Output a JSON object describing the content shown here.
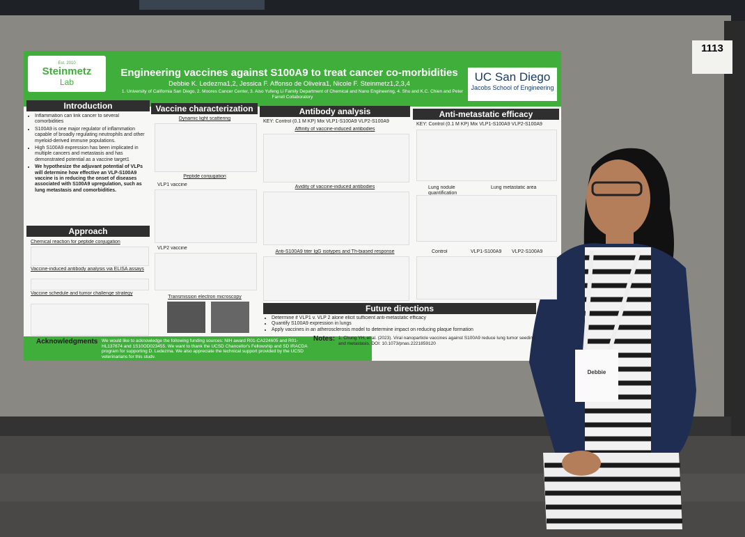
{
  "booth_number": "1113",
  "poster": {
    "logo": {
      "est": "Est. 2010",
      "name": "Steinmetz",
      "sub": "Lab"
    },
    "title": "Engineering vaccines against S100A9 to treat cancer co-morbidities",
    "authors": "Debbie K. Ledezma1,2, Jessica F. Affonso de Oliveira1, Nicole F. Steinmetz1,2,3,4",
    "affiliations": "1. University of California San Diego, 2. Moores Cancer Center, 3. Aiso Yufeng Li Family Department of Chemical and Nano Engineering, 4. Shu and K.C. Chien and Peter Farrell Collaboratory",
    "institution": {
      "name": "UC San Diego",
      "school": "Jacobs School of Engineering"
    },
    "introduction": {
      "heading": "Introduction",
      "bullets": [
        "Inflammation can link cancer to several comorbidities",
        "S100A9 is one major regulator of inflammation capable of broadly regulating neutrophils and other myeloid-derived immune populations.",
        "High S100A9 expression has been implicated in multiple cancers and metastasis and has demonstrated potential as a vaccine target1",
        "We hypothesize the adjuvant potential of VLPs will determine how effective an VLP-S100A9 vaccine is in reducing the onset of diseases associated with S100A9 upregulation, such as lung metastasis and comorbidities."
      ]
    },
    "approach": {
      "heading": "Approach",
      "items": [
        "Chemical reaction for peptide conjugation",
        "Vaccine-induced antibody analysis via ELISA assays",
        "Vaccine schedule and tumor challenge strategy"
      ]
    },
    "vaccine_characterization": {
      "heading": "Vaccine characterization",
      "subheadings": [
        "Dynamic light scattering",
        "Peptide conjugation",
        "Transmission electron microscopy"
      ],
      "labels": [
        "VLP1 vaccine",
        "VLP2 vaccine"
      ]
    },
    "antibody_analysis": {
      "heading": "Antibody analysis",
      "key": "KEY: Control (0.1 M KP) Mix VLP1-S100A9 VLP2-S100A9",
      "subheadings": [
        "Affinity of vaccine-induced antibodies",
        "Avidity of vaccine-induced antibodies",
        "Anti-S100A9 titer IgG isotypes and Th-biased response"
      ]
    },
    "anti_metastatic": {
      "heading": "Anti-metastatic efficacy",
      "key": "KEY: Control (0.1 M KP) Mix VLP1-S100A9 VLP2-S100A9",
      "labels": [
        "Lung nodule quantification",
        "Lung metastatic area",
        "Control",
        "VLP1-S100A9",
        "VLP2-S100A9"
      ]
    },
    "future_directions": {
      "heading": "Future directions",
      "bullets": [
        "Determine if VLP1 v. VLP 2 alone elicit sufficient anti-metastatic efficacy",
        "Quantify S100A9 expression in lungs",
        "Apply vaccines in an atherosclerosis model to determine impact on reducing plaque formation"
      ]
    },
    "acknowledgments": {
      "heading": "Acknowledgments",
      "text": "We would like to acknowledge the following funding sources: NIH award R01-CA224605 and R01-HL137674 and 1S10OD023455. We want to thank the UCSD Chancellor's Fellowship and SD IRACDA program for supporting D. Ledezma. We also appreciate the technical support provided by the UCSD veterinarians for this study."
    },
    "notes": {
      "heading": "Notes:",
      "text": "1. Chung YH, et al. (2023). Viral nanoparticle vaccines against S100A9 reduce lung tumor seeding and metastasis. DOI: 10.1073/pnas.2221859120"
    }
  },
  "badge": {
    "name": "Debbie"
  }
}
